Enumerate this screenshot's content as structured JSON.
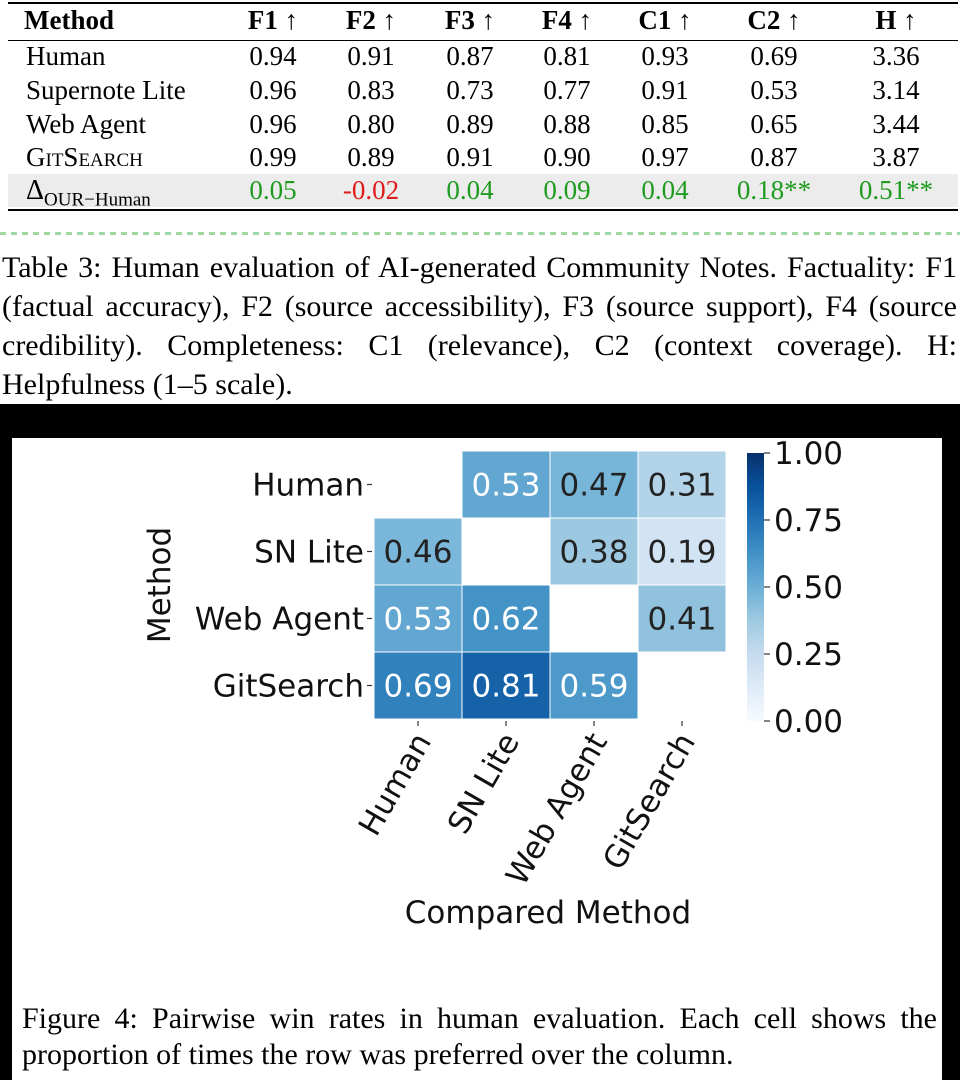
{
  "table": {
    "headers": [
      "Method",
      "F1 ↑",
      "F2 ↑",
      "F3 ↑",
      "F4 ↑",
      "C1 ↑",
      "C2 ↑",
      "H ↑"
    ],
    "rows": [
      {
        "method": "Human",
        "values": [
          "0.94",
          "0.91",
          "0.87",
          "0.81",
          "0.93",
          "0.69",
          "3.36"
        ]
      },
      {
        "method": "Supernote Lite",
        "values": [
          "0.96",
          "0.83",
          "0.73",
          "0.77",
          "0.91",
          "0.53",
          "3.14"
        ]
      },
      {
        "method": "Web Agent",
        "values": [
          "0.96",
          "0.80",
          "0.89",
          "0.88",
          "0.85",
          "0.65",
          "3.44"
        ]
      },
      {
        "method": "GitSearch",
        "values": [
          "0.99",
          "0.89",
          "0.91",
          "0.90",
          "0.97",
          "0.87",
          "3.87"
        ]
      }
    ],
    "delta_row": {
      "symbol": "Δ",
      "subscript": "OUR−Human",
      "values": [
        "0.05",
        "-0.02",
        "0.04",
        "0.09",
        "0.04",
        "0.18**",
        "0.51**"
      ]
    },
    "colors": {
      "positive": "#1f9b1f",
      "negative": "#e01b1b",
      "highlight": "#ececec"
    },
    "caption": "Table 3: Human evaluation of AI-generated Community Notes. Factuality: F1 (factual accuracy), F2 (source accessibility), F3 (source support), F4 (source credibility). Completeness: C1 (relevance), C2 (context coverage). H: Helpfulness (1–5 scale)."
  },
  "chart_data": {
    "type": "heatmap",
    "rows": [
      "Human",
      "SN Lite",
      "Web Agent",
      "GitSearch"
    ],
    "columns": [
      "Human",
      "SN Lite",
      "Web Agent",
      "GitSearch"
    ],
    "values": [
      [
        null,
        0.53,
        0.47,
        0.31
      ],
      [
        0.46,
        null,
        0.38,
        0.19
      ],
      [
        0.53,
        0.62,
        null,
        0.41
      ],
      [
        0.69,
        0.81,
        0.59,
        null
      ]
    ],
    "value_labels": [
      [
        "",
        "0.53",
        "0.47",
        "0.31"
      ],
      [
        "0.46",
        "",
        "0.38",
        "0.19"
      ],
      [
        "0.53",
        "0.62",
        "",
        "0.41"
      ],
      [
        "0.69",
        "0.81",
        "0.59",
        ""
      ]
    ],
    "xlabel": "Compared Method",
    "ylabel": "Method",
    "colorbar": {
      "range": [
        0.0,
        1.0
      ],
      "ticks": [
        "1.00",
        "0.75",
        "0.50",
        "0.25",
        "0.00"
      ],
      "tick_values": [
        1.0,
        0.75,
        0.5,
        0.25,
        0.0
      ],
      "colormap": "Blues"
    }
  },
  "figure": {
    "caption": "Figure 4: Pairwise win rates in human evaluation. Each cell shows the proportion of times the row was preferred over the column."
  }
}
